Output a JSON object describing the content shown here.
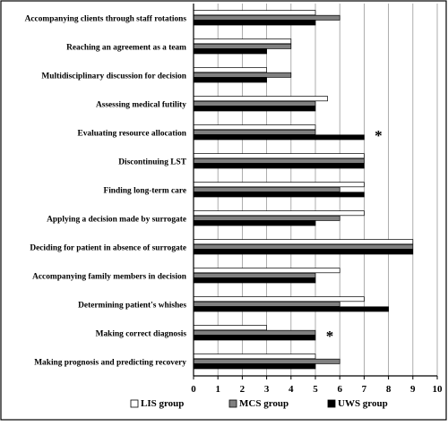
{
  "chart_data": {
    "type": "bar",
    "orientation": "horizontal",
    "categories": [
      "Accompanying clients through staff rotations",
      "Reaching an agreement as a team",
      "Multidisciplinary discussion for decision",
      "Assessing medical futility",
      "Evaluating resource allocation",
      "Discontinuing LST",
      "Finding long-term care",
      "Applying a decision made by surrogate",
      "Deciding for patient in absence of surrogate",
      "Accompanying family members in decision",
      "Determining patient's whishes",
      "Making correct diagnosis",
      "Making prognosis and predicting recovery"
    ],
    "series": [
      {
        "name": "LIS group",
        "color": "#ffffff",
        "values": [
          5,
          4,
          3,
          5.5,
          5,
          7,
          7,
          7,
          9,
          6,
          7,
          3,
          5
        ]
      },
      {
        "name": "MCS group",
        "color": "#808080",
        "values": [
          6,
          4,
          4,
          5,
          5,
          7,
          6,
          6,
          9,
          5,
          6,
          5,
          6
        ]
      },
      {
        "name": "UWS group",
        "color": "#000000",
        "values": [
          5,
          3,
          3,
          5,
          7,
          7,
          7,
          5,
          9,
          5,
          8,
          5,
          5
        ]
      }
    ],
    "xlim": [
      0,
      10
    ],
    "xticks": [
      "0",
      "1",
      "2",
      "3",
      "4",
      "5",
      "6",
      "7",
      "8",
      "9",
      "10"
    ],
    "grid": "vertical",
    "legend_position": "bottom",
    "annotations": [
      {
        "text": "*",
        "category": "Evaluating resource allocation"
      },
      {
        "text": "*",
        "category": "Making correct diagnosis"
      }
    ],
    "title": "",
    "xlabel": "",
    "ylabel": ""
  }
}
